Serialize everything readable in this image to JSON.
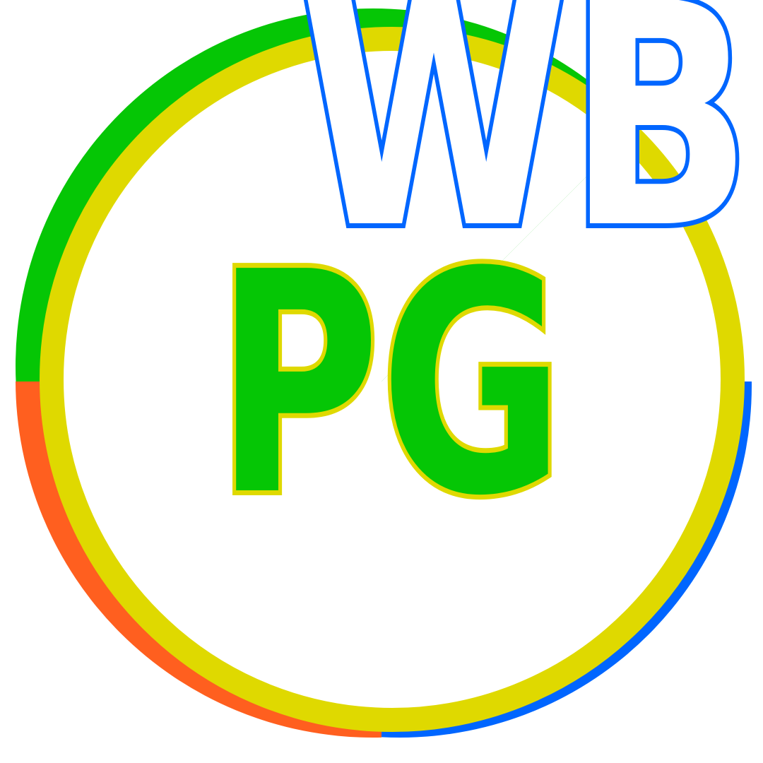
{
  "logo": {
    "top_text": "WB",
    "center_text": "PG"
  },
  "colors": {
    "background": "#ffffff",
    "ring_green": "#05c605",
    "ring_orange": "#ff5f1f",
    "ring_blue": "#0066ff",
    "ring_yellow": "#dfd900",
    "top_text_fill": "#ffffff",
    "top_text_stroke": "#0066ff",
    "center_text_fill": "#05c605",
    "center_text_stroke": "#dfd900"
  }
}
